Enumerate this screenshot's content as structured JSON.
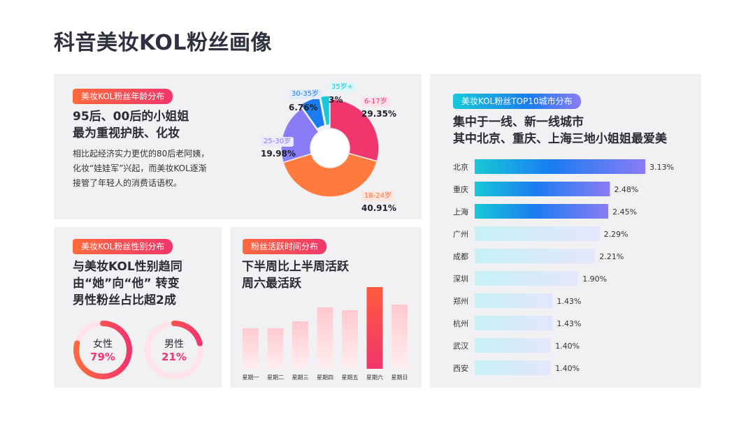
{
  "page_title": "科音美妆KOL粉丝画像",
  "age_panel": {
    "tag": "美妆KOL粉丝年龄分布",
    "headline": [
      "95后、00后的小姐姐",
      "最为重视护肤、化妆"
    ],
    "body": [
      "相比起经济实力更优的80后老阿姨，",
      "化妆“娃娃军”兴起，而美妆KOL逐渐",
      "接管了年轻人的消费话语权。"
    ]
  },
  "gender_panel": {
    "tag": "美妆KOL粉丝性别分布",
    "headline": [
      "与美妆KOL性别趋同",
      "由“她”向“他” 转变",
      "男性粉丝占比超2成"
    ]
  },
  "activity_panel": {
    "tag": "粉丝活跃时间分布",
    "headline": [
      "下半周比上半周活跃",
      "周六最活跃"
    ]
  },
  "city_panel": {
    "tag": "美妆KOL粉丝TOP10城市分布",
    "headline": [
      "集中于一线、新一线城市",
      "其中北京、重庆、上海三地小姐姐最爱美"
    ]
  },
  "colors": {
    "accent_red": "#f0366c",
    "accent_orange": "#ff6a3d",
    "accent_blue": "#1a7cf0",
    "accent_cyan": "#18c8d8"
  },
  "chart_data": [
    {
      "type": "pie",
      "variant": "donut",
      "categories": [
        "6-17岁",
        "18-24岁",
        "25-30岁",
        "30-35岁",
        "35岁+"
      ],
      "values": [
        29.35,
        40.91,
        19.98,
        6.76,
        3
      ],
      "value_labels": [
        "29.35%",
        "40.91%",
        "19.98%",
        "6.76%",
        "3%"
      ],
      "colors": [
        "#f0366c",
        "#ff7a3d",
        "#8a7cf5",
        "#1a7cf0",
        "#18c8d8"
      ]
    },
    {
      "type": "pie",
      "variant": "ring",
      "categories": [
        "女性",
        "男性"
      ],
      "values": [
        79,
        21
      ],
      "value_labels": [
        "79%",
        "21%"
      ]
    },
    {
      "type": "bar",
      "categories": [
        "星期一",
        "星期二",
        "星期三",
        "星期四",
        "星期五",
        "星期六",
        "星期日"
      ],
      "values": [
        58,
        58,
        68,
        88,
        84,
        117,
        92
      ],
      "highlight": "星期六"
    },
    {
      "type": "bar",
      "orientation": "horizontal",
      "categories": [
        "北京",
        "重庆",
        "上海",
        "广州",
        "成都",
        "深圳",
        "郑州",
        "杭州",
        "武汉",
        "西安"
      ],
      "values": [
        3.13,
        2.48,
        2.45,
        2.29,
        2.21,
        1.9,
        1.43,
        1.43,
        1.4,
        1.4
      ],
      "value_labels": [
        "3.13%",
        "2.48%",
        "2.45%",
        "2.29%",
        "2.21%",
        "1.90%",
        "1.43%",
        "1.43%",
        "1.40%",
        "1.40%"
      ],
      "highlight_top": 3
    }
  ]
}
